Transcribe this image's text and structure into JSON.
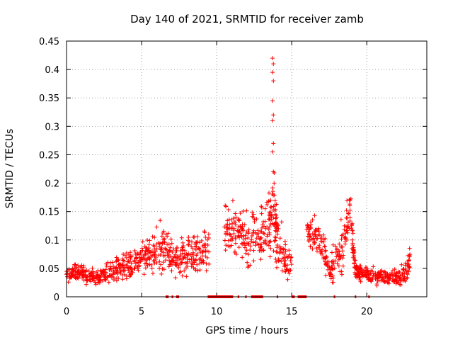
{
  "chart_data": {
    "type": "scatter",
    "title": "Day 140 of 2021, SRMTID for receiver zamb",
    "xlabel": "GPS time / hours",
    "ylabel": "SRMTID / TECUs",
    "xlim": [
      0,
      24
    ],
    "ylim": [
      0,
      0.45
    ],
    "xticks": [
      0,
      5,
      10,
      15,
      20
    ],
    "yticks": [
      0,
      0.05,
      0.1,
      0.15,
      0.2,
      0.25,
      0.3,
      0.35,
      0.4,
      0.45
    ],
    "grid": true,
    "marker": "+",
    "color": "#ff0000",
    "series": [
      {
        "name": "SRMTID",
        "profile_hours": [
          0.0,
          0.5,
          1.0,
          1.5,
          2.0,
          2.5,
          3.0,
          3.5,
          4.0,
          4.5,
          5.0,
          5.5,
          6.0,
          6.5,
          7.0,
          7.5,
          8.0,
          8.5,
          9.0,
          9.5,
          10.0,
          10.5,
          11.0,
          11.5,
          12.0,
          12.5,
          13.0,
          13.5,
          13.8,
          14.0,
          14.5,
          15.0,
          15.5,
          16.0,
          16.5,
          17.0,
          17.5,
          18.0,
          18.5,
          18.9,
          19.2,
          19.5,
          20.0,
          20.5,
          21.0,
          21.5,
          22.0,
          22.5,
          22.9
        ],
        "typical_value": [
          0.035,
          0.045,
          0.04,
          0.035,
          0.035,
          0.04,
          0.045,
          0.05,
          0.055,
          0.06,
          0.075,
          0.07,
          0.08,
          0.09,
          0.065,
          0.07,
          0.07,
          0.075,
          0.08,
          0.09,
          null,
          0.12,
          0.12,
          0.11,
          0.1,
          0.11,
          0.11,
          0.13,
          0.15,
          0.12,
          0.07,
          0.05,
          null,
          0.12,
          0.11,
          0.09,
          0.05,
          0.06,
          0.09,
          0.16,
          0.05,
          0.04,
          0.04,
          0.035,
          0.035,
          0.035,
          0.035,
          0.04,
          0.07
        ],
        "spread": [
          0.012,
          0.012,
          0.012,
          0.012,
          0.012,
          0.015,
          0.015,
          0.018,
          0.02,
          0.02,
          0.025,
          0.025,
          0.035,
          0.04,
          0.03,
          0.025,
          0.03,
          0.03,
          0.03,
          0.04,
          null,
          0.045,
          0.04,
          0.035,
          0.04,
          0.04,
          0.04,
          0.05,
          0.06,
          0.05,
          0.03,
          0.025,
          null,
          0.025,
          0.025,
          0.03,
          0.02,
          0.04,
          0.05,
          0.03,
          0.015,
          0.012,
          0.012,
          0.012,
          0.012,
          0.012,
          0.012,
          0.015,
          0.025
        ],
        "peak": {
          "x": 13.75,
          "values": [
            0.42,
            0.41,
            0.395,
            0.38,
            0.345,
            0.32,
            0.31,
            0.27,
            0.255,
            0.22
          ]
        }
      }
    ],
    "zero_flag_hours": [
      [
        6.6,
        6.8
      ],
      [
        7.0,
        7.1
      ],
      [
        7.3,
        7.5
      ],
      [
        9.4,
        11.1
      ],
      [
        11.4,
        11.5
      ],
      [
        11.9,
        12.0
      ],
      [
        12.3,
        13.1
      ],
      [
        14.0,
        14.1
      ],
      [
        15.0,
        15.2
      ],
      [
        15.4,
        16.0
      ],
      [
        17.8,
        17.9
      ],
      [
        19.2,
        19.3
      ],
      [
        20.1,
        20.2
      ]
    ]
  }
}
